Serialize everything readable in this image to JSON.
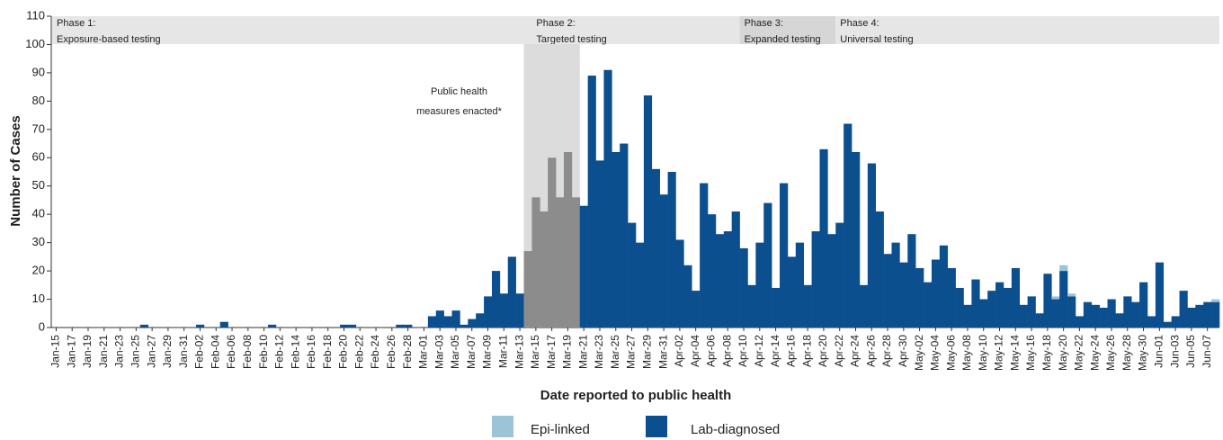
{
  "chart_data": {
    "type": "bar",
    "stacked": true,
    "y_label": "Number of Cases",
    "x_label": "Date reported to public health",
    "categories": [
      "Jan-15",
      null,
      "Jan-17",
      null,
      "Jan-19",
      null,
      "Jan-21",
      null,
      "Jan-23",
      null,
      "Jan-25",
      null,
      "Jan-27",
      null,
      "Jan-29",
      null,
      "Jan-31",
      null,
      "Feb-02",
      null,
      "Feb-04",
      null,
      "Feb-06",
      null,
      "Feb-08",
      null,
      "Feb-10",
      null,
      "Feb-12",
      null,
      "Feb-14",
      null,
      "Feb-16",
      null,
      "Feb-18",
      null,
      "Feb-20",
      null,
      "Feb-22",
      null,
      "Feb-24",
      null,
      "Feb-26",
      null,
      "Feb-28",
      null,
      "Mar-01",
      null,
      "Mar-03",
      null,
      "Mar-05",
      null,
      "Mar-07",
      null,
      "Mar-09",
      null,
      "Mar-11",
      null,
      "Mar-13",
      null,
      "Mar-15",
      null,
      "Mar-17",
      null,
      "Mar-19",
      null,
      "Mar-21",
      null,
      "Mar-23",
      null,
      "Mar-25",
      null,
      "Mar-27",
      null,
      "Mar-29",
      null,
      "Mar-31",
      null,
      "Apr-02",
      null,
      "Apr-04",
      null,
      "Apr-06",
      null,
      "Apr-08",
      null,
      "Apr-10",
      null,
      "Apr-12",
      null,
      "Apr-14",
      null,
      "Apr-16",
      null,
      "Apr-18",
      null,
      "Apr-20",
      null,
      "Apr-22",
      null,
      "Apr-24",
      null,
      "Apr-26",
      null,
      "Apr-28",
      null,
      "Apr-30",
      null,
      "May-02",
      null,
      "May-04",
      null,
      "May-06",
      null,
      "May-08",
      null,
      "May-10",
      null,
      "May-12",
      null,
      "May-14",
      null,
      "May-16",
      null,
      "May-18",
      null,
      "May-20",
      null,
      "May-22",
      null,
      "May-24",
      null,
      "May-26",
      null,
      "May-28",
      null,
      "May-30",
      null,
      "Jun-01",
      null,
      "Jun-03",
      null,
      "Jun-05",
      null,
      "Jun-07",
      null
    ],
    "series": [
      {
        "name": "Epi-linked",
        "color": "#9cc4d7",
        "values": [
          0,
          0,
          0,
          0,
          0,
          0,
          0,
          0,
          0,
          0,
          0,
          0,
          0,
          0,
          0,
          0,
          0,
          0,
          0,
          0,
          0,
          0,
          0,
          0,
          0,
          0,
          0,
          0,
          0,
          0,
          0,
          0,
          0,
          0,
          0,
          0,
          0,
          0,
          0,
          0,
          0,
          0,
          0,
          0,
          0,
          0,
          0,
          0,
          0,
          0,
          0,
          0,
          0,
          0,
          0,
          0,
          0,
          0,
          0,
          0,
          0,
          0,
          0,
          0,
          0,
          0,
          0,
          0,
          0,
          0,
          0,
          0,
          0,
          0,
          0,
          0,
          0,
          0,
          0,
          0,
          0,
          0,
          0,
          0,
          0,
          0,
          0,
          0,
          0,
          0,
          0,
          0,
          0,
          0,
          0,
          0,
          0,
          0,
          0,
          0,
          0,
          0,
          0,
          0,
          0,
          0,
          0,
          0,
          0,
          0,
          0,
          0,
          0,
          0,
          0,
          0,
          0,
          0,
          0,
          0,
          0,
          0,
          0,
          0,
          0,
          1,
          2,
          1,
          0,
          0,
          0,
          0,
          0,
          0,
          0,
          0,
          0,
          0,
          0,
          0,
          0,
          0,
          0,
          0,
          0,
          1
        ]
      },
      {
        "name": "Lab-diagnosed",
        "color": "#0b4f8f",
        "values": [
          0,
          0,
          0,
          0,
          0,
          0,
          0,
          0,
          0,
          0,
          0,
          1,
          0,
          0,
          0,
          0,
          0,
          0,
          1,
          0,
          0,
          2,
          0,
          0,
          0,
          0,
          0,
          1,
          0,
          0,
          0,
          0,
          0,
          0,
          0,
          0,
          1,
          1,
          0,
          0,
          0,
          0,
          0,
          1,
          1,
          0,
          0,
          4,
          6,
          4,
          6,
          1,
          3,
          5,
          11,
          20,
          12,
          25,
          12,
          27,
          46,
          41,
          60,
          46,
          62,
          46,
          43,
          89,
          59,
          91,
          62,
          65,
          37,
          30,
          82,
          56,
          47,
          55,
          31,
          22,
          13,
          51,
          40,
          33,
          34,
          41,
          28,
          15,
          30,
          44,
          14,
          51,
          25,
          30,
          15,
          34,
          63,
          33,
          37,
          72,
          62,
          15,
          58,
          41,
          26,
          30,
          23,
          33,
          21,
          16,
          24,
          29,
          21,
          14,
          8,
          17,
          10,
          13,
          16,
          14,
          21,
          8,
          11,
          5,
          19,
          10,
          20,
          11,
          4,
          9,
          8,
          7,
          10,
          5,
          11,
          9,
          16,
          4,
          23,
          2,
          4,
          13,
          7,
          8,
          9,
          9
        ]
      }
    ],
    "ylim": [
      0,
      110
    ],
    "yticks": [
      0,
      10,
      20,
      30,
      40,
      50,
      60,
      70,
      80,
      90,
      100,
      110
    ],
    "phases": [
      {
        "label": "Phase 1:",
        "description": "Exposure-based testing",
        "start": "Jan-15",
        "color": "#e6e6e6"
      },
      {
        "label": "Phase 2:",
        "description": "Targeted testing",
        "start": "Mar-15",
        "color": "#e6e6e6"
      },
      {
        "label": "Phase 3:",
        "description": "Expanded testing",
        "start": "Apr-10",
        "color": "#d6d6d6"
      },
      {
        "label": "Phase 4:",
        "description": "Universal testing",
        "start": "Apr-22",
        "color": "#e6e6e6"
      }
    ],
    "annotation": {
      "text": [
        "Public health",
        "measures enacted*"
      ],
      "from": "Mar-13",
      "to": "Mar-21",
      "color": "#dcdcdc",
      "bar_color": "#8c8c8c"
    }
  }
}
